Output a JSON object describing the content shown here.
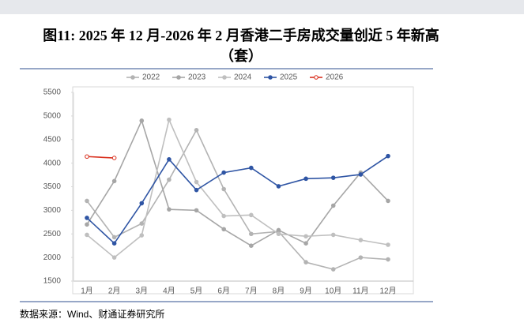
{
  "chart_data": {
    "type": "line",
    "title": "图11: 2025 年 12 月-2026 年 2 月香港二手房成交量创近 5 年新高（套）",
    "source": "数据来源：Wind、财通证券研究所",
    "categories": [
      "1月",
      "2月",
      "3月",
      "4月",
      "5月",
      "6月",
      "7月",
      "8月",
      "9月",
      "10月",
      "11月",
      "12月"
    ],
    "series": [
      {
        "name": "2022",
        "color": "#b3b3b3",
        "values": [
          3200,
          2430,
          2720,
          3650,
          4700,
          3450,
          2500,
          2550,
          1900,
          1750,
          2000,
          1960
        ]
      },
      {
        "name": "2023",
        "color": "#a6a6a6",
        "values": [
          2700,
          3620,
          4900,
          3020,
          3000,
          2600,
          2250,
          2580,
          2300,
          3100,
          3800,
          3200
        ]
      },
      {
        "name": "2024",
        "color": "#bfbfbf",
        "values": [
          2480,
          2000,
          2470,
          4920,
          3600,
          2880,
          2900,
          2500,
          2450,
          2480,
          2370,
          2270
        ]
      },
      {
        "name": "2025",
        "color": "#2f55a4",
        "values": [
          2840,
          2300,
          3150,
          4080,
          3430,
          3800,
          3900,
          3510,
          3670,
          3690,
          3760,
          4150
        ]
      },
      {
        "name": "2026",
        "color": "#d9301e",
        "values": [
          4140,
          4110,
          null,
          null,
          null,
          null,
          null,
          null,
          null,
          null,
          null,
          null
        ]
      }
    ],
    "ylim": [
      1500,
      5500
    ],
    "yticks": [
      1500,
      2000,
      2500,
      3000,
      3500,
      4000,
      4500,
      5000,
      5500
    ]
  }
}
